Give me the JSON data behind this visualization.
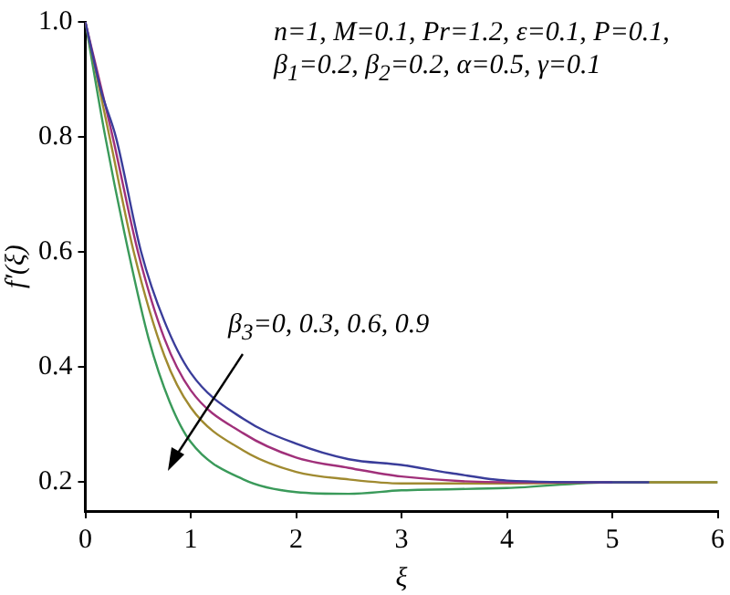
{
  "chart_data": {
    "type": "line",
    "xlabel": "ξ",
    "ylabel": "f′(ξ)",
    "xlim": [
      0,
      6
    ],
    "xticks": [
      0,
      1,
      2,
      3,
      4,
      5,
      6
    ],
    "ylim": [
      0.15,
      1
    ],
    "yticks": [
      0.2,
      0.4,
      0.6,
      0.8,
      {
        "value": 1,
        "label": "1.0"
      }
    ],
    "grid": false,
    "legend": false,
    "marker": "none",
    "line_style": "solid",
    "annotations": [
      "n=1, M=0.1, Pr=1.2, ε=0.1, P=0.1,",
      "β$_{1}$=0.2, β$_{2}$=0.2, α=0.5, γ=0.1",
      "β$_{3}$=0, 0.3, 0.6, 0.9"
    ],
    "series": [
      {
        "color": "#3a3d9a",
        "x": [
          0,
          0.15,
          0.29,
          0.53,
          0.75,
          1,
          1.5,
          2,
          2.5,
          3,
          3.5,
          4,
          5,
          5.35
        ],
        "values": [
          1,
          0.88,
          0.8,
          0.6,
          0.48,
          0.39,
          0.31,
          0.267,
          0.24,
          0.23,
          0.215,
          0.203,
          0.2,
          0.2
        ]
      },
      {
        "color": "#a0307a",
        "x": [
          0,
          0.26,
          0.5,
          0.75,
          1,
          1.5,
          2,
          2.5,
          3,
          4,
          5
        ],
        "values": [
          1,
          0.8,
          0.6,
          0.45,
          0.36,
          0.285,
          0.243,
          0.225,
          0.21,
          0.2,
          0.2
        ]
      },
      {
        "color": "#a08a30",
        "x": [
          0,
          0.23,
          0.46,
          0.75,
          1,
          1.5,
          2,
          2.5,
          3,
          4,
          5,
          6
        ],
        "values": [
          1,
          0.8,
          0.6,
          0.42,
          0.33,
          0.255,
          0.218,
          0.205,
          0.198,
          0.198,
          0.2,
          0.2
        ]
      },
      {
        "color": "#3a9a5a",
        "x": [
          0,
          0.19,
          0.41,
          0.6,
          0.8,
          1,
          1.5,
          2,
          2.5,
          3,
          4,
          5,
          6
        ],
        "values": [
          1,
          0.8,
          0.6,
          0.45,
          0.34,
          0.27,
          0.205,
          0.183,
          0.18,
          0.186,
          0.19,
          0.2,
          0.2
        ]
      }
    ]
  }
}
